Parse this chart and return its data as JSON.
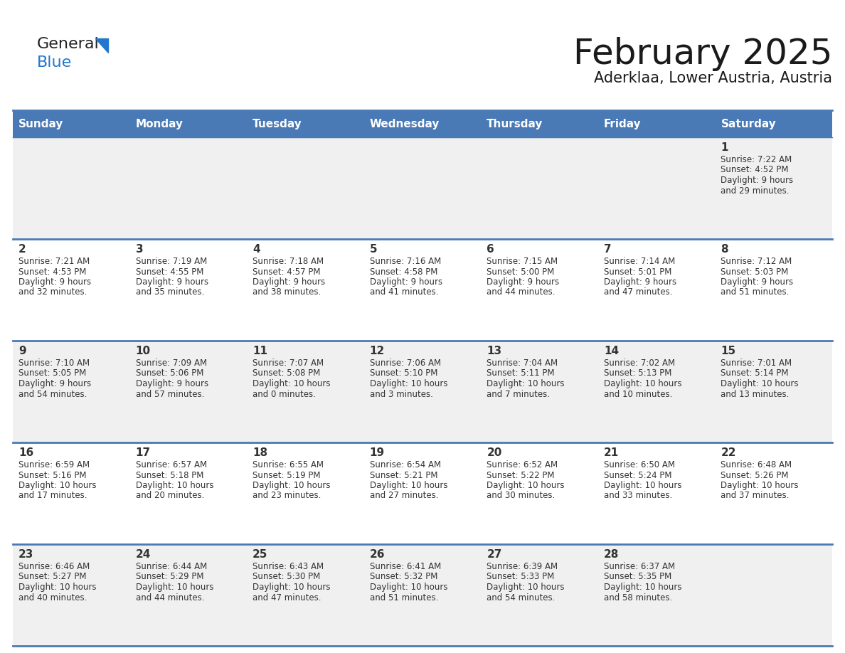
{
  "title": "February 2025",
  "subtitle": "Aderklaa, Lower Austria, Austria",
  "days_of_week": [
    "Sunday",
    "Monday",
    "Tuesday",
    "Wednesday",
    "Thursday",
    "Friday",
    "Saturday"
  ],
  "header_bg": "#4a7ab5",
  "header_text": "#ffffff",
  "cell_bg_odd": "#f0f0f0",
  "cell_bg_even": "#ffffff",
  "divider_color": "#4a7ab5",
  "text_color": "#333333",
  "title_color": "#1a1a1a",
  "logo_general_color": "#222222",
  "logo_blue_color": "#2277cc",
  "logo_triangle_color": "#2277cc",
  "calendar_data": [
    [
      {
        "day": null,
        "sunrise": null,
        "sunset": null,
        "daylight": null
      },
      {
        "day": null,
        "sunrise": null,
        "sunset": null,
        "daylight": null
      },
      {
        "day": null,
        "sunrise": null,
        "sunset": null,
        "daylight": null
      },
      {
        "day": null,
        "sunrise": null,
        "sunset": null,
        "daylight": null
      },
      {
        "day": null,
        "sunrise": null,
        "sunset": null,
        "daylight": null
      },
      {
        "day": null,
        "sunrise": null,
        "sunset": null,
        "daylight": null
      },
      {
        "day": 1,
        "sunrise": "7:22 AM",
        "sunset": "4:52 PM",
        "daylight": "9 hours and 29 minutes."
      }
    ],
    [
      {
        "day": 2,
        "sunrise": "7:21 AM",
        "sunset": "4:53 PM",
        "daylight": "9 hours and 32 minutes."
      },
      {
        "day": 3,
        "sunrise": "7:19 AM",
        "sunset": "4:55 PM",
        "daylight": "9 hours and 35 minutes."
      },
      {
        "day": 4,
        "sunrise": "7:18 AM",
        "sunset": "4:57 PM",
        "daylight": "9 hours and 38 minutes."
      },
      {
        "day": 5,
        "sunrise": "7:16 AM",
        "sunset": "4:58 PM",
        "daylight": "9 hours and 41 minutes."
      },
      {
        "day": 6,
        "sunrise": "7:15 AM",
        "sunset": "5:00 PM",
        "daylight": "9 hours and 44 minutes."
      },
      {
        "day": 7,
        "sunrise": "7:14 AM",
        "sunset": "5:01 PM",
        "daylight": "9 hours and 47 minutes."
      },
      {
        "day": 8,
        "sunrise": "7:12 AM",
        "sunset": "5:03 PM",
        "daylight": "9 hours and 51 minutes."
      }
    ],
    [
      {
        "day": 9,
        "sunrise": "7:10 AM",
        "sunset": "5:05 PM",
        "daylight": "9 hours and 54 minutes."
      },
      {
        "day": 10,
        "sunrise": "7:09 AM",
        "sunset": "5:06 PM",
        "daylight": "9 hours and 57 minutes."
      },
      {
        "day": 11,
        "sunrise": "7:07 AM",
        "sunset": "5:08 PM",
        "daylight": "10 hours and 0 minutes."
      },
      {
        "day": 12,
        "sunrise": "7:06 AM",
        "sunset": "5:10 PM",
        "daylight": "10 hours and 3 minutes."
      },
      {
        "day": 13,
        "sunrise": "7:04 AM",
        "sunset": "5:11 PM",
        "daylight": "10 hours and 7 minutes."
      },
      {
        "day": 14,
        "sunrise": "7:02 AM",
        "sunset": "5:13 PM",
        "daylight": "10 hours and 10 minutes."
      },
      {
        "day": 15,
        "sunrise": "7:01 AM",
        "sunset": "5:14 PM",
        "daylight": "10 hours and 13 minutes."
      }
    ],
    [
      {
        "day": 16,
        "sunrise": "6:59 AM",
        "sunset": "5:16 PM",
        "daylight": "10 hours and 17 minutes."
      },
      {
        "day": 17,
        "sunrise": "6:57 AM",
        "sunset": "5:18 PM",
        "daylight": "10 hours and 20 minutes."
      },
      {
        "day": 18,
        "sunrise": "6:55 AM",
        "sunset": "5:19 PM",
        "daylight": "10 hours and 23 minutes."
      },
      {
        "day": 19,
        "sunrise": "6:54 AM",
        "sunset": "5:21 PM",
        "daylight": "10 hours and 27 minutes."
      },
      {
        "day": 20,
        "sunrise": "6:52 AM",
        "sunset": "5:22 PM",
        "daylight": "10 hours and 30 minutes."
      },
      {
        "day": 21,
        "sunrise": "6:50 AM",
        "sunset": "5:24 PM",
        "daylight": "10 hours and 33 minutes."
      },
      {
        "day": 22,
        "sunrise": "6:48 AM",
        "sunset": "5:26 PM",
        "daylight": "10 hours and 37 minutes."
      }
    ],
    [
      {
        "day": 23,
        "sunrise": "6:46 AM",
        "sunset": "5:27 PM",
        "daylight": "10 hours and 40 minutes."
      },
      {
        "day": 24,
        "sunrise": "6:44 AM",
        "sunset": "5:29 PM",
        "daylight": "10 hours and 44 minutes."
      },
      {
        "day": 25,
        "sunrise": "6:43 AM",
        "sunset": "5:30 PM",
        "daylight": "10 hours and 47 minutes."
      },
      {
        "day": 26,
        "sunrise": "6:41 AM",
        "sunset": "5:32 PM",
        "daylight": "10 hours and 51 minutes."
      },
      {
        "day": 27,
        "sunrise": "6:39 AM",
        "sunset": "5:33 PM",
        "daylight": "10 hours and 54 minutes."
      },
      {
        "day": 28,
        "sunrise": "6:37 AM",
        "sunset": "5:35 PM",
        "daylight": "10 hours and 58 minutes."
      },
      {
        "day": null,
        "sunrise": null,
        "sunset": null,
        "daylight": null
      }
    ]
  ]
}
